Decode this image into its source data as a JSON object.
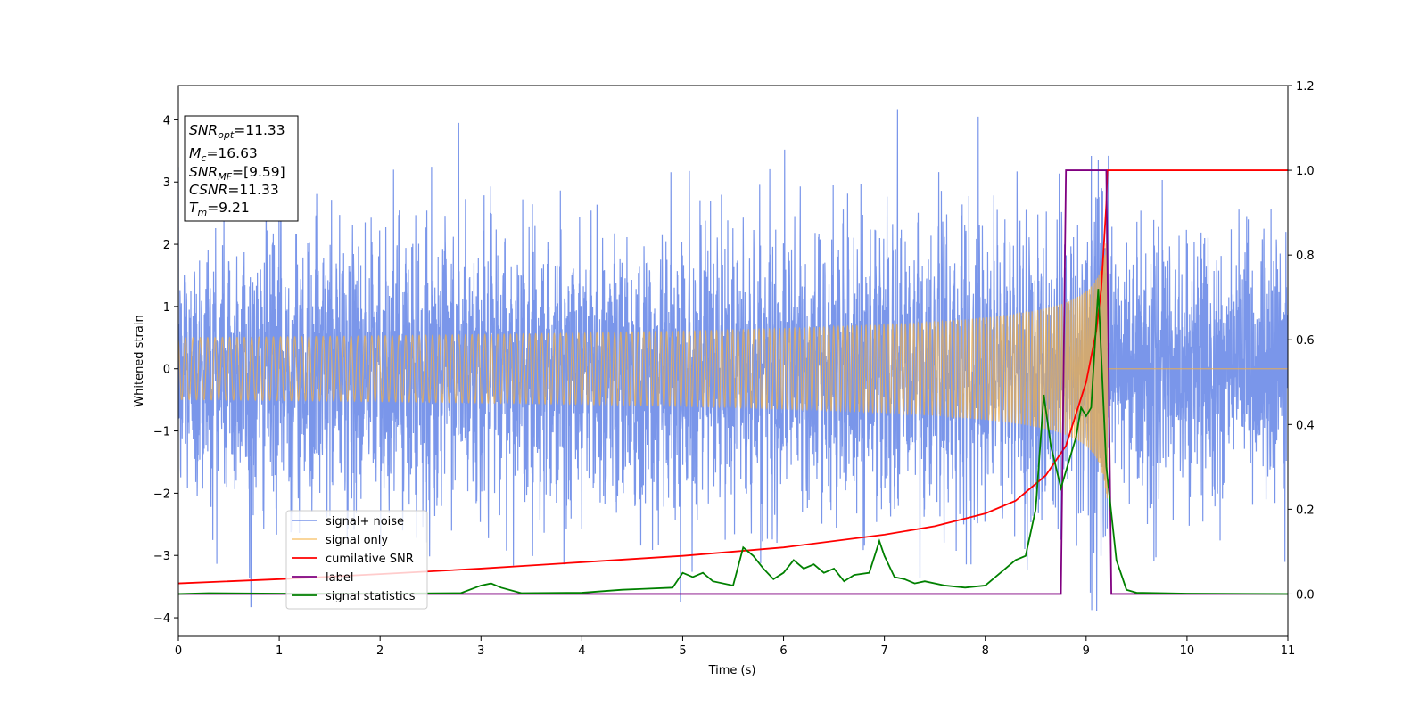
{
  "chart_data": {
    "type": "line",
    "title": "",
    "xlabel": "Time (s)",
    "ylabel": "Whitened strain",
    "xlim": [
      0,
      11
    ],
    "ylim": [
      -4.3,
      4.55
    ],
    "y2lim": [
      -0.1,
      1.2
    ],
    "x_ticks": [
      "0",
      "1",
      "2",
      "3",
      "4",
      "5",
      "6",
      "7",
      "8",
      "9",
      "10",
      "11"
    ],
    "y_ticks": [
      "−4",
      "−3",
      "−2",
      "−1",
      "0",
      "1",
      "2",
      "3",
      "4"
    ],
    "y2_ticks": [
      "0.0",
      "0.2",
      "0.4",
      "0.6",
      "0.8",
      "1.0",
      "1.2"
    ],
    "grid": false,
    "legend_position": "lower-left",
    "info_box": {
      "snr_opt": {
        "sym": "SNR",
        "sub": "opt",
        "value": "=11.33"
      },
      "mc": {
        "sym": "M",
        "sub": "c",
        "value": "=16.63"
      },
      "snr_mf": {
        "sym": "SNR",
        "sub": "MF",
        "value": "=[9.59]"
      },
      "csnr": {
        "sym": "CSNR",
        "sub": "",
        "value": "=11.33"
      },
      "tm": {
        "sym": "T",
        "sub": "m",
        "value": "=9.21"
      }
    },
    "series": [
      {
        "name": "signal+ noise",
        "axis": "left",
        "color": "#4169e1",
        "description": "noise, roughly ±2.2 with spikes to ±4; plus chirp",
        "noise_sigma": 1.0,
        "extreme_points": [
          [
            0.72,
            -3.82
          ],
          [
            2.78,
            3.95
          ],
          [
            7.13,
            4.17
          ],
          [
            7.93,
            4.05
          ],
          [
            9.12,
            3.35
          ],
          [
            9.22,
            3.42
          ]
        ]
      },
      {
        "name": "signal only",
        "axis": "left",
        "color": "#f5b041",
        "description": "chirp waveform merging at T_m",
        "merger_time": 9.21,
        "peak_amplitude": 2.3
      },
      {
        "name": "cumilative SNR",
        "axis": "right",
        "color": "#ff0000",
        "points": [
          [
            0,
            0.025
          ],
          [
            1,
            0.035
          ],
          [
            2,
            0.047
          ],
          [
            3,
            0.06
          ],
          [
            4,
            0.075
          ],
          [
            5,
            0.09
          ],
          [
            6,
            0.11
          ],
          [
            7,
            0.14
          ],
          [
            7.5,
            0.16
          ],
          [
            8,
            0.19
          ],
          [
            8.3,
            0.22
          ],
          [
            8.6,
            0.28
          ],
          [
            8.8,
            0.35
          ],
          [
            9.0,
            0.5
          ],
          [
            9.1,
            0.62
          ],
          [
            9.15,
            0.72
          ],
          [
            9.2,
            0.92
          ],
          [
            9.21,
            1.0
          ],
          [
            11,
            1.0
          ]
        ]
      },
      {
        "name": "label",
        "axis": "right",
        "color": "#800080",
        "points": [
          [
            0,
            0
          ],
          [
            8.75,
            0
          ],
          [
            8.8,
            1.0
          ],
          [
            9.2,
            1.0
          ],
          [
            9.25,
            0
          ],
          [
            11,
            0
          ]
        ]
      },
      {
        "name": "signal statistics",
        "axis": "right",
        "color": "#008000",
        "points": [
          [
            0,
            0.0
          ],
          [
            0.3,
            0.002
          ],
          [
            1,
            0.001
          ],
          [
            2,
            0.001
          ],
          [
            2.8,
            0.002
          ],
          [
            3.0,
            0.02
          ],
          [
            3.1,
            0.025
          ],
          [
            3.2,
            0.015
          ],
          [
            3.4,
            0.002
          ],
          [
            4.0,
            0.003
          ],
          [
            4.4,
            0.01
          ],
          [
            4.6,
            0.012
          ],
          [
            4.9,
            0.015
          ],
          [
            5.0,
            0.05
          ],
          [
            5.1,
            0.04
          ],
          [
            5.2,
            0.05
          ],
          [
            5.3,
            0.03
          ],
          [
            5.5,
            0.02
          ],
          [
            5.6,
            0.11
          ],
          [
            5.7,
            0.09
          ],
          [
            5.8,
            0.06
          ],
          [
            5.9,
            0.035
          ],
          [
            6.0,
            0.05
          ],
          [
            6.1,
            0.08
          ],
          [
            6.2,
            0.06
          ],
          [
            6.3,
            0.07
          ],
          [
            6.4,
            0.05
          ],
          [
            6.5,
            0.06
          ],
          [
            6.6,
            0.03
          ],
          [
            6.7,
            0.045
          ],
          [
            6.85,
            0.05
          ],
          [
            6.95,
            0.125
          ],
          [
            7.0,
            0.09
          ],
          [
            7.1,
            0.04
          ],
          [
            7.2,
            0.035
          ],
          [
            7.3,
            0.025
          ],
          [
            7.4,
            0.03
          ],
          [
            7.6,
            0.02
          ],
          [
            7.8,
            0.015
          ],
          [
            8.0,
            0.02
          ],
          [
            8.1,
            0.04
          ],
          [
            8.3,
            0.08
          ],
          [
            8.4,
            0.09
          ],
          [
            8.5,
            0.2
          ],
          [
            8.58,
            0.47
          ],
          [
            8.65,
            0.35
          ],
          [
            8.75,
            0.25
          ],
          [
            8.9,
            0.37
          ],
          [
            8.95,
            0.44
          ],
          [
            9.0,
            0.42
          ],
          [
            9.05,
            0.44
          ],
          [
            9.12,
            0.72
          ],
          [
            9.2,
            0.3
          ],
          [
            9.3,
            0.08
          ],
          [
            9.4,
            0.01
          ],
          [
            9.5,
            0.003
          ],
          [
            10,
            0.001
          ],
          [
            11,
            0.0
          ]
        ]
      }
    ]
  }
}
